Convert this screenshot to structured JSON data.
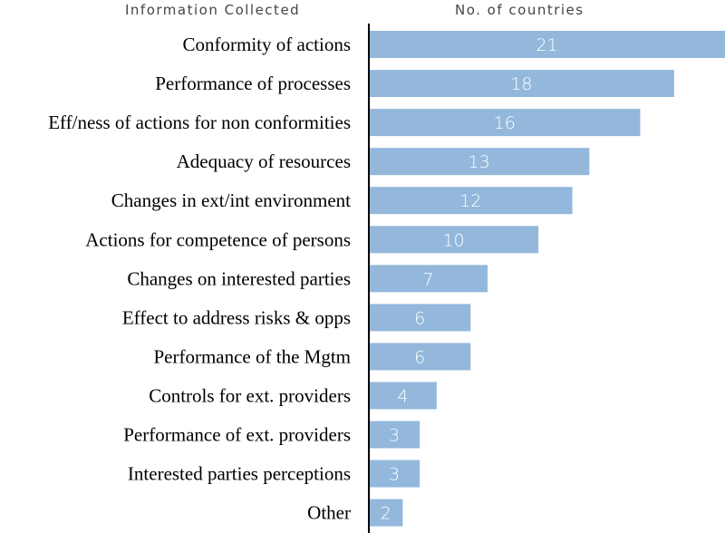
{
  "headers": {
    "left": "Information Collected",
    "right": "No. of countries"
  },
  "colors": {
    "bar": "#93b8dc",
    "axis": "#000000"
  },
  "chart_data": {
    "type": "bar",
    "orientation": "horizontal",
    "categories": [
      "Conformity of actions",
      "Performance of processes",
      "Eff/ness of actions for non conformities",
      "Adequacy of resources",
      "Changes in ext/int environment",
      "Actions for competence of persons",
      "Changes on interested parties",
      "Effect to address risks & opps",
      "Performance of the Mgtm",
      "Controls for ext. providers",
      "Performance of ext. providers",
      "Interested parties perceptions",
      "Other"
    ],
    "values": [
      21,
      18,
      16,
      13,
      12,
      10,
      7,
      6,
      6,
      4,
      3,
      3,
      2
    ],
    "xlim": [
      0,
      21
    ],
    "grid": false,
    "data_labels": true
  }
}
